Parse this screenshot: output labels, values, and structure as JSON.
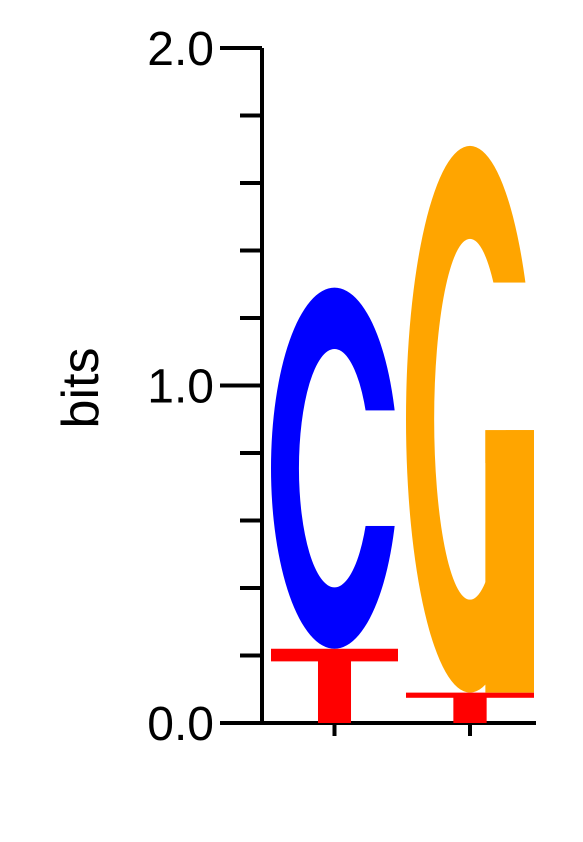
{
  "chart_data": {
    "type": "sequence-logo",
    "ylabel": "bits",
    "ylim": [
      0,
      2.0
    ],
    "y_tick_labels": [
      "0.0",
      "1.0",
      "2.0"
    ],
    "minor_ticks_between_labels": 4,
    "x_tick_labels": [
      "",
      ""
    ],
    "positions": [
      {
        "letters": [
          {
            "letter": "T",
            "bits": 0.22,
            "color": "#ff0000"
          },
          {
            "letter": "C",
            "bits": 1.07,
            "color": "#0000ff"
          }
        ]
      },
      {
        "letters": [
          {
            "letter": "T",
            "bits": 0.09,
            "color": "#ff0000"
          },
          {
            "letter": "G",
            "bits": 1.62,
            "color": "#ffa500"
          }
        ]
      }
    ],
    "grid": false,
    "legend": "none"
  }
}
